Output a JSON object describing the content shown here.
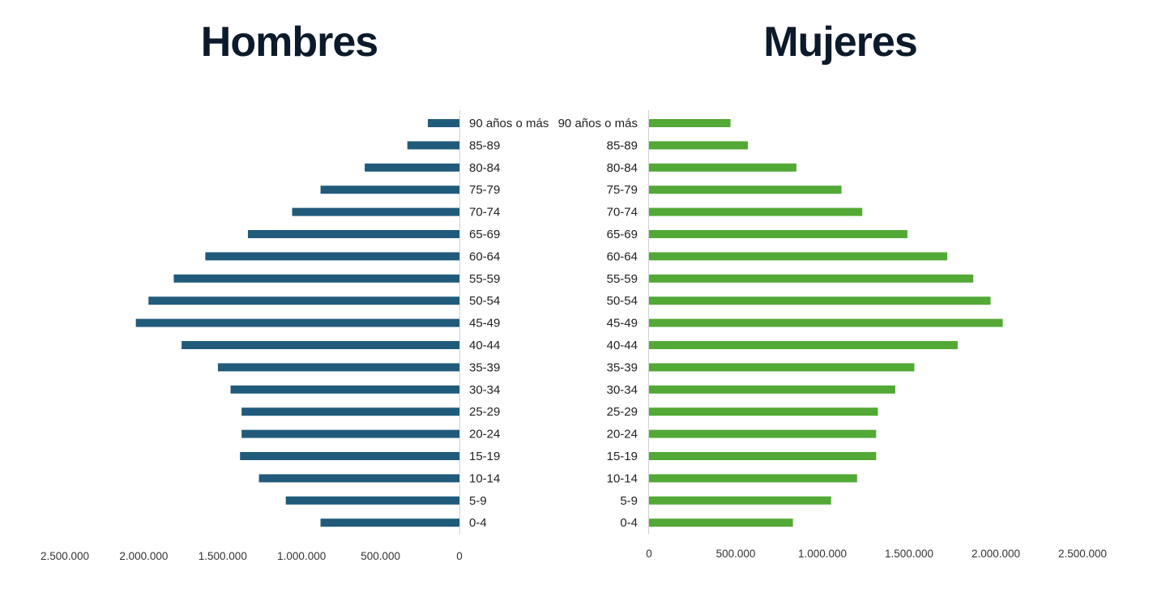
{
  "chart_data": [
    {
      "type": "bar",
      "orientation": "horizontal",
      "direction": "right-to-left",
      "title": "Hombres",
      "categories": [
        "90 años o más",
        "85-89",
        "80-84",
        "75-79",
        "70-74",
        "65-69",
        "60-64",
        "55-59",
        "50-54",
        "45-49",
        "40-44",
        "35-39",
        "30-34",
        "25-29",
        "20-24",
        "15-19",
        "10-14",
        "5-9",
        "0-4"
      ],
      "values": [
        200000,
        330000,
        600000,
        880000,
        1060000,
        1340000,
        1610000,
        1810000,
        1970000,
        2050000,
        1760000,
        1530000,
        1450000,
        1380000,
        1380000,
        1390000,
        1270000,
        1100000,
        880000
      ],
      "xlim": [
        0,
        2500000
      ],
      "ticks": [
        "2.500.000",
        "2.000.000",
        "1.500.000",
        "1.000.000",
        "500.000",
        "0"
      ],
      "tick_values": [
        2500000,
        2000000,
        1500000,
        1000000,
        500000,
        0
      ],
      "color": "#215b7c",
      "grid": false
    },
    {
      "type": "bar",
      "orientation": "horizontal",
      "direction": "left-to-right",
      "title": "Mujeres",
      "categories": [
        "90 años o más",
        "85-89",
        "80-84",
        "75-79",
        "70-74",
        "65-69",
        "60-64",
        "55-59",
        "50-54",
        "45-49",
        "40-44",
        "35-39",
        "30-34",
        "25-29",
        "20-24",
        "15-19",
        "10-14",
        "5-9",
        "0-4"
      ],
      "values": [
        470000,
        570000,
        850000,
        1110000,
        1230000,
        1490000,
        1720000,
        1870000,
        1970000,
        2040000,
        1780000,
        1530000,
        1420000,
        1320000,
        1310000,
        1310000,
        1200000,
        1050000,
        830000
      ],
      "xlim": [
        0,
        2500000
      ],
      "ticks": [
        "0",
        "500.000",
        "1.000.000",
        "1.500.000",
        "2.000.000",
        "2.500.000"
      ],
      "tick_values": [
        0,
        500000,
        1000000,
        1500000,
        2000000,
        2500000
      ],
      "color": "#52a936",
      "grid": false
    }
  ]
}
